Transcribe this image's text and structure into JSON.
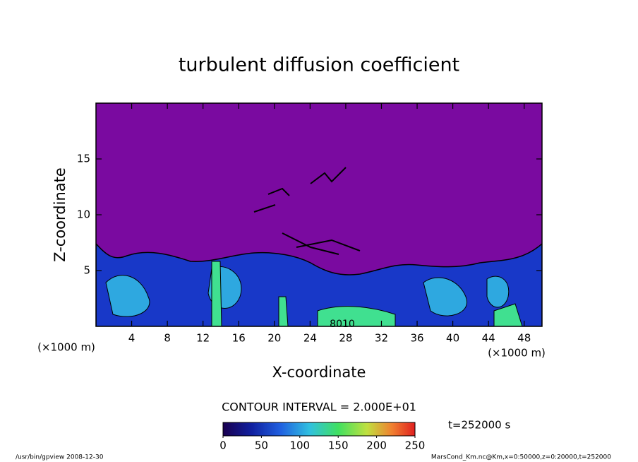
{
  "chart_data": {
    "type": "contour",
    "title": "turbulent diffusion coefficient",
    "xlabel": "X-coordinate",
    "ylabel": "Z-coordinate",
    "x_unit": "(×1000 m)",
    "y_unit": "(×1000 m)",
    "xlim": [
      0,
      50
    ],
    "xticks": [
      4,
      8,
      12,
      16,
      20,
      24,
      28,
      32,
      36,
      40,
      44,
      48
    ],
    "ylim": [
      0,
      20
    ],
    "yticks": [
      5,
      10,
      15
    ],
    "contour_label": "8010",
    "contour_interval": "CONTOUR INTERVAL = 2.000E+01",
    "clim": [
      0,
      250
    ],
    "cticks": [
      0,
      50,
      100,
      150,
      200,
      250
    ],
    "time_label": "t=252000 s",
    "footer_left": "/usr/bin/gpview  2008-12-30",
    "footer_right": "MarsCond_Km.nc@Km,x=0:50000,z=0:20000,t=252000"
  }
}
